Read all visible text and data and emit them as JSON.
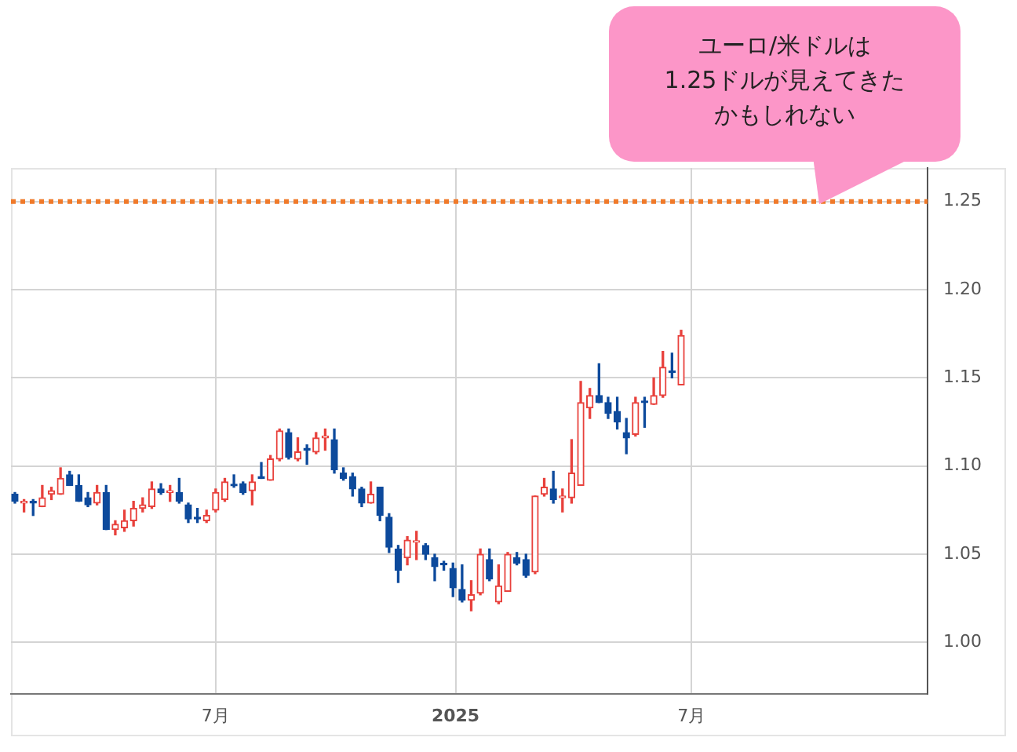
{
  "chart_data": {
    "type": "candlestick",
    "x": [
      "2024-01-29",
      "2024-02-05",
      "2024-02-12",
      "2024-02-19",
      "2024-02-26",
      "2024-03-04",
      "2024-03-11",
      "2024-03-18",
      "2024-03-25",
      "2024-04-01",
      "2024-04-08",
      "2024-04-15",
      "2024-04-22",
      "2024-04-29",
      "2024-05-06",
      "2024-05-13",
      "2024-05-20",
      "2024-05-27",
      "2024-06-03",
      "2024-06-10",
      "2024-06-17",
      "2024-06-24",
      "2024-07-01",
      "2024-07-08",
      "2024-07-15",
      "2024-07-22",
      "2024-07-29",
      "2024-08-05",
      "2024-08-12",
      "2024-08-19",
      "2024-08-26",
      "2024-09-02",
      "2024-09-09",
      "2024-09-16",
      "2024-09-23",
      "2024-09-30",
      "2024-10-07",
      "2024-10-14",
      "2024-10-21",
      "2024-10-28",
      "2024-11-04",
      "2024-11-11",
      "2024-11-18",
      "2024-11-25",
      "2024-12-02",
      "2024-12-09",
      "2024-12-16",
      "2024-12-23",
      "2024-12-30",
      "2025-01-06",
      "2025-01-13",
      "2025-01-20",
      "2025-01-27",
      "2025-02-03",
      "2025-02-10",
      "2025-02-17",
      "2025-02-24",
      "2025-03-03",
      "2025-03-10",
      "2025-03-17",
      "2025-03-24",
      "2025-03-31",
      "2025-04-07",
      "2025-04-14",
      "2025-04-21",
      "2025-04-28",
      "2025-05-05",
      "2025-05-12",
      "2025-05-19",
      "2025-05-26",
      "2025-06-02",
      "2025-06-09",
      "2025-06-16",
      "2025-06-23"
    ],
    "ohlc": [
      [
        1.084,
        1.085,
        1.079,
        1.08
      ],
      [
        1.079,
        1.081,
        1.074,
        1.08
      ],
      [
        1.08,
        1.081,
        1.072,
        1.079
      ],
      [
        1.077,
        1.089,
        1.077,
        1.082
      ],
      [
        1.084,
        1.088,
        1.081,
        1.086
      ],
      [
        1.084,
        1.099,
        1.084,
        1.093
      ],
      [
        1.095,
        1.097,
        1.089,
        1.089
      ],
      [
        1.089,
        1.095,
        1.08,
        1.08
      ],
      [
        1.082,
        1.085,
        1.077,
        1.078
      ],
      [
        1.079,
        1.089,
        1.078,
        1.085
      ],
      [
        1.085,
        1.089,
        1.064,
        1.064
      ],
      [
        1.064,
        1.069,
        1.061,
        1.067
      ],
      [
        1.065,
        1.075,
        1.063,
        1.069
      ],
      [
        1.069,
        1.08,
        1.066,
        1.076
      ],
      [
        1.076,
        1.082,
        1.074,
        1.078
      ],
      [
        1.077,
        1.091,
        1.076,
        1.087
      ],
      [
        1.087,
        1.09,
        1.084,
        1.085
      ],
      [
        1.085,
        1.089,
        1.08,
        1.086
      ],
      [
        1.085,
        1.093,
        1.079,
        1.08
      ],
      [
        1.078,
        1.079,
        1.068,
        1.07
      ],
      [
        1.071,
        1.076,
        1.068,
        1.07
      ],
      [
        1.069,
        1.075,
        1.068,
        1.072
      ],
      [
        1.075,
        1.087,
        1.074,
        1.085
      ],
      [
        1.081,
        1.093,
        1.08,
        1.091
      ],
      [
        1.089,
        1.095,
        1.088,
        1.0888
      ],
      [
        1.09,
        1.091,
        1.084,
        1.085
      ],
      [
        1.086,
        1.095,
        1.078,
        1.091
      ],
      [
        1.094,
        1.102,
        1.093,
        1.093
      ],
      [
        1.092,
        1.106,
        1.092,
        1.104
      ],
      [
        1.104,
        1.121,
        1.103,
        1.12
      ],
      [
        1.119,
        1.121,
        1.104,
        1.105
      ],
      [
        1.104,
        1.116,
        1.103,
        1.108
      ],
      [
        1.11,
        1.112,
        1.101,
        1.109
      ],
      [
        1.108,
        1.119,
        1.107,
        1.116
      ],
      [
        1.116,
        1.121,
        1.109,
        1.117
      ],
      [
        1.115,
        1.121,
        1.096,
        1.098
      ],
      [
        1.096,
        1.099,
        1.092,
        1.093
      ],
      [
        1.094,
        1.096,
        1.083,
        1.087
      ],
      [
        1.087,
        1.088,
        1.077,
        1.079
      ],
      [
        1.079,
        1.091,
        1.079,
        1.084
      ],
      [
        1.088,
        1.088,
        1.069,
        1.072
      ],
      [
        1.071,
        1.073,
        1.051,
        1.054
      ],
      [
        1.053,
        1.055,
        1.034,
        1.041
      ],
      [
        1.048,
        1.06,
        1.044,
        1.058
      ],
      [
        1.0568,
        1.063,
        1.047,
        1.0572
      ],
      [
        1.055,
        1.056,
        1.047,
        1.05
      ],
      [
        1.048,
        1.05,
        1.035,
        1.043
      ],
      [
        1.0445,
        1.046,
        1.041,
        1.044
      ],
      [
        1.042,
        1.045,
        1.026,
        1.031
      ],
      [
        1.03,
        1.044,
        1.023,
        1.024
      ],
      [
        1.024,
        1.035,
        1.018,
        1.027
      ],
      [
        1.028,
        1.053,
        1.027,
        1.05
      ],
      [
        1.047,
        1.053,
        1.035,
        1.036
      ],
      [
        1.023,
        1.044,
        1.022,
        1.032
      ],
      [
        1.029,
        1.051,
        1.029,
        1.05
      ],
      [
        1.048,
        1.051,
        1.044,
        1.045
      ],
      [
        1.047,
        1.05,
        1.037,
        1.038
      ],
      [
        1.04,
        1.083,
        1.039,
        1.083
      ],
      [
        1.084,
        1.093,
        1.083,
        1.088
      ],
      [
        1.087,
        1.097,
        1.079,
        1.081
      ],
      [
        1.082,
        1.087,
        1.074,
        1.083
      ],
      [
        1.082,
        1.115,
        1.079,
        1.096
      ],
      [
        1.089,
        1.148,
        1.089,
        1.136
      ],
      [
        1.133,
        1.144,
        1.127,
        1.14
      ],
      [
        1.14,
        1.158,
        1.136,
        1.136
      ],
      [
        1.136,
        1.139,
        1.127,
        1.13
      ],
      [
        1.131,
        1.139,
        1.121,
        1.125
      ],
      [
        1.119,
        1.127,
        1.107,
        1.116
      ],
      [
        1.118,
        1.139,
        1.117,
        1.136
      ],
      [
        1.1365,
        1.139,
        1.122,
        1.136
      ],
      [
        1.135,
        1.15,
        1.135,
        1.14
      ],
      [
        1.14,
        1.165,
        1.139,
        1.156
      ],
      [
        1.1535,
        1.164,
        1.15,
        1.153
      ],
      [
        1.146,
        1.177,
        1.146,
        1.174
      ]
    ],
    "xlim": [
      "2024-01-26",
      "2025-12-29"
    ],
    "xticks": [
      {
        "value": "2024-07-01",
        "label": "7月"
      },
      {
        "value": "2025-01-01",
        "label": "2025"
      },
      {
        "value": "2025-07-01",
        "label": "7月"
      }
    ],
    "ylim": [
      0.971,
      1.269
    ],
    "yticks": [
      {
        "value": 1.0,
        "label": "1.00"
      },
      {
        "value": 1.05,
        "label": "1.05"
      },
      {
        "value": 1.1,
        "label": "1.10"
      },
      {
        "value": 1.15,
        "label": "1.15"
      },
      {
        "value": 1.2,
        "label": "1.20"
      },
      {
        "value": 1.25,
        "label": "1.25"
      }
    ],
    "grid": true,
    "ref_lines": [
      {
        "axis": "y",
        "value": 1.25,
        "color": "#f07a2a",
        "line_style": "dotted"
      }
    ],
    "annotations": [
      "ユーロ/米ドルは",
      "1.25ドルが見えてきた",
      "かもしれない"
    ]
  }
}
